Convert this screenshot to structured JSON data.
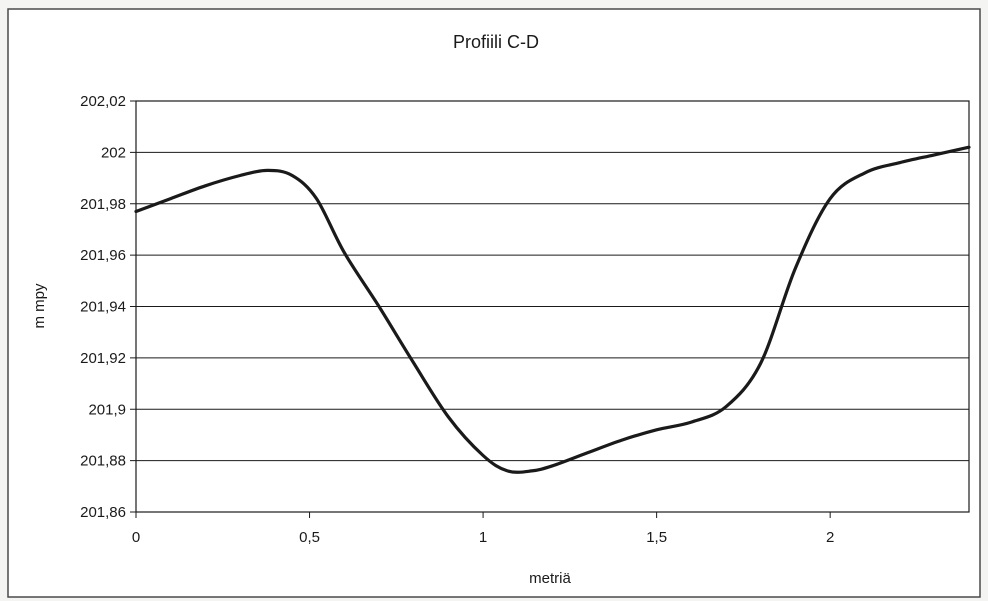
{
  "chart_data": {
    "type": "line",
    "title": "Profiili C-D",
    "xlabel": "metriä",
    "ylabel": "m mpy",
    "xlim": [
      0,
      2.4
    ],
    "ylim": [
      201.86,
      202.02
    ],
    "x_ticks": [
      0,
      0.5,
      1,
      1.5,
      2
    ],
    "x_tick_labels": [
      "0",
      "0,5",
      "1",
      "1,5",
      "2"
    ],
    "y_ticks": [
      201.86,
      201.88,
      201.9,
      201.92,
      201.94,
      201.96,
      201.98,
      202.0,
      202.02
    ],
    "y_tick_labels": [
      "201,86",
      "201,88",
      "201,9",
      "201,92",
      "201,94",
      "201,96",
      "201,98",
      "202",
      "202,02"
    ],
    "grid": "horizontal",
    "line_color": "#1a1a1a",
    "series": [
      {
        "x": [
          0,
          0.1,
          0.2,
          0.3,
          0.38,
          0.45,
          0.52,
          0.6,
          0.7,
          0.8,
          0.9,
          1.0,
          1.07,
          1.14,
          1.2,
          1.3,
          1.4,
          1.5,
          1.6,
          1.7,
          1.8,
          1.9,
          2.0,
          2.1,
          2.2,
          2.3,
          2.4
        ],
        "y": [
          201.977,
          201.982,
          201.987,
          201.991,
          201.993,
          201.991,
          201.982,
          201.961,
          201.94,
          201.918,
          201.897,
          201.882,
          201.876,
          201.876,
          201.878,
          201.883,
          201.888,
          201.892,
          201.895,
          201.901,
          201.918,
          201.955,
          201.982,
          201.992,
          201.996,
          201.999,
          202.002
        ]
      }
    ]
  }
}
